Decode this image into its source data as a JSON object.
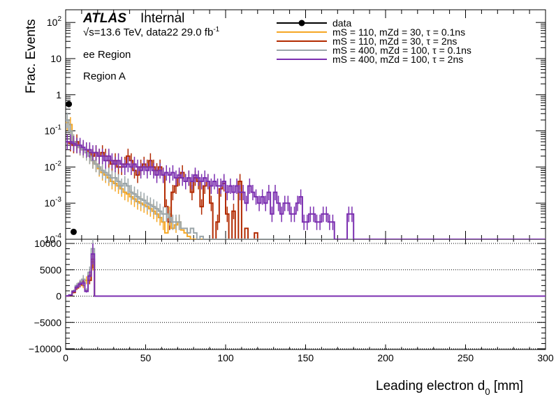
{
  "chart_data": [
    {
      "type": "line",
      "panel": "top",
      "ylabel": "Frac. Events",
      "yscale": "log",
      "ylim": [
        0.0001,
        200
      ],
      "xlim": [
        0,
        300
      ],
      "y_tick_labels": [
        "10^-4",
        "10^-3",
        "10^-2",
        "10^-1",
        "1",
        "10",
        "10^2"
      ],
      "experiment": "ATLAS",
      "experiment_status": "Internal",
      "energy_label": "√s=13.6 TeV, data22 29.0 fb^-1",
      "region_labels": [
        "ee Region",
        "Region A"
      ],
      "legend_position": "top-right",
      "series": [
        {
          "name": "data",
          "color": "#000000",
          "style": "markers",
          "x": [
            2,
            5
          ],
          "values": [
            0.55,
            0.00016
          ]
        },
        {
          "name": "mS = 110, mZd = 30, τ = 0.1ns",
          "color": "#f5a623",
          "style": "step",
          "x": [
            1,
            3,
            5,
            7,
            9,
            11,
            13,
            15,
            17,
            19,
            21,
            23,
            25,
            27,
            29,
            31,
            33,
            35,
            37,
            39,
            41,
            43,
            45,
            47,
            49,
            51,
            53,
            55,
            57,
            59,
            61,
            63,
            65,
            67,
            69,
            71,
            73,
            75,
            77,
            79
          ],
          "values": [
            0.17,
            0.15,
            0.05,
            0.04,
            0.035,
            0.03,
            0.025,
            0.02,
            0.015,
            0.012,
            0.009,
            0.007,
            0.006,
            0.005,
            0.004,
            0.0035,
            0.003,
            0.0025,
            0.002,
            0.0018,
            0.0015,
            0.0013,
            0.0011,
            0.001,
            0.0009,
            0.0008,
            0.0007,
            0.0006,
            0.0005,
            0.0004,
            0.0003,
            0.00015,
            0.0005,
            0.0002,
            0.00025,
            0.0003,
            0.00018,
            0.00015,
            0.00012,
            0.0001
          ]
        },
        {
          "name": "mS = 110, mZd = 30, τ = 2ns",
          "color": "#b22a00",
          "style": "step",
          "x": [
            1,
            3,
            5,
            7,
            9,
            11,
            13,
            15,
            17,
            19,
            21,
            23,
            25,
            27,
            29,
            31,
            33,
            35,
            37,
            39,
            41,
            43,
            45,
            47,
            49,
            51,
            53,
            55,
            57,
            59,
            61,
            63,
            65,
            67,
            69,
            71,
            73,
            75,
            77,
            79,
            81,
            83,
            85,
            87,
            89,
            91,
            93,
            95,
            97,
            99,
            101,
            103,
            105,
            107,
            109,
            111,
            113,
            115,
            117,
            119,
            121,
            123,
            125,
            127
          ],
          "values": [
            0.05,
            0.045,
            0.04,
            0.05,
            0.035,
            0.03,
            0.03,
            0.025,
            0.02,
            0.025,
            0.02,
            0.025,
            0.02,
            0.015,
            0.012,
            0.015,
            0.01,
            0.01,
            0.012,
            0.02,
            0.015,
            0.008,
            0.006,
            0.01,
            0.012,
            0.01,
            0.015,
            0.01,
            0.008,
            0.01,
            0.006,
            0.0008,
            0.0003,
            0.002,
            0.003,
            0.005,
            0.007,
            0.004,
            0.005,
            0.002,
            0.005,
            0.004,
            0.0008,
            0.003,
            0.004,
            0.001,
            0.0001,
            0.0003,
            0.0025,
            0.0035,
            0.0005,
            0.0001,
            0.0006,
            0.0001,
            0.004,
            0.0001,
            0.0002,
            0.0001,
            0.0001,
            0.00015,
            0.0001,
            0.0001,
            0.0001,
            0.0001
          ]
        },
        {
          "name": "mS = 400, mZd = 100, τ = 0.1ns",
          "color": "#9aa5a8",
          "style": "step",
          "x": [
            1,
            3,
            5,
            7,
            9,
            11,
            13,
            15,
            17,
            19,
            21,
            23,
            25,
            27,
            29,
            31,
            33,
            35,
            37,
            39,
            41,
            43,
            45,
            47,
            49,
            51,
            53,
            55,
            57,
            59,
            61,
            63,
            65,
            67,
            69,
            71,
            73,
            75,
            77,
            79,
            81,
            83,
            85,
            87,
            89,
            91,
            93,
            95,
            97,
            99,
            101,
            103,
            105,
            107,
            109,
            111
          ],
          "values": [
            0.2,
            0.1,
            0.05,
            0.04,
            0.035,
            0.03,
            0.025,
            0.02,
            0.015,
            0.012,
            0.01,
            0.008,
            0.007,
            0.006,
            0.005,
            0.005,
            0.004,
            0.003,
            0.0035,
            0.003,
            0.002,
            0.0018,
            0.0015,
            0.0013,
            0.0012,
            0.001,
            0.0009,
            0.0008,
            0.0007,
            0.0006,
            0.0005,
            0.0005,
            0.0004,
            0.0003,
            0.0003,
            0.0003,
            0.0002,
            0.0002,
            0.00015,
            0.0002,
            0.00015,
            0.0001,
            0.00012,
            0.0001,
            0.0001,
            0.0001,
            0.0001,
            0.0001,
            0.0001,
            0.0001,
            0.0001,
            0.0001,
            0.0001,
            0.0001,
            0.0001,
            0.0001
          ]
        },
        {
          "name": "mS = 400, mZd = 100, τ = 2ns",
          "color": "#7b2fb0",
          "style": "step",
          "x": [
            1,
            3,
            5,
            7,
            9,
            11,
            13,
            15,
            17,
            19,
            21,
            23,
            25,
            27,
            29,
            31,
            33,
            35,
            37,
            39,
            41,
            43,
            45,
            47,
            49,
            51,
            53,
            55,
            57,
            59,
            61,
            63,
            65,
            67,
            69,
            71,
            73,
            75,
            77,
            79,
            81,
            83,
            85,
            87,
            89,
            91,
            93,
            95,
            97,
            99,
            101,
            103,
            105,
            107,
            109,
            111,
            113,
            115,
            117,
            119,
            121,
            123,
            125,
            127,
            129,
            131,
            133,
            135,
            137,
            139,
            141,
            143,
            145,
            147,
            149,
            151,
            153,
            155,
            157,
            159,
            161,
            163,
            165,
            167,
            169,
            171,
            173,
            175,
            177,
            179,
            181
          ],
          "values": [
            0.05,
            0.05,
            0.045,
            0.04,
            0.04,
            0.035,
            0.03,
            0.03,
            0.025,
            0.025,
            0.02,
            0.02,
            0.015,
            0.02,
            0.015,
            0.012,
            0.015,
            0.012,
            0.01,
            0.012,
            0.01,
            0.012,
            0.01,
            0.008,
            0.01,
            0.008,
            0.01,
            0.008,
            0.006,
            0.008,
            0.006,
            0.007,
            0.006,
            0.007,
            0.005,
            0.006,
            0.005,
            0.004,
            0.005,
            0.004,
            0.006,
            0.005,
            0.004,
            0.005,
            0.004,
            0.003,
            0.004,
            0.003,
            0.003,
            0.004,
            0.002,
            0.003,
            0.002,
            0.003,
            0.002,
            0.002,
            0.001,
            0.003,
            0.002,
            0.0015,
            0.001,
            0.0015,
            0.001,
            0.002,
            0.0005,
            0.002,
            0.001,
            0.0005,
            0.001,
            0.001,
            0.0005,
            0.0005,
            0.001,
            0.0015,
            0.0003,
            0.0003,
            0.0005,
            0.0005,
            0.0003,
            0.0003,
            0.0005,
            0.0005,
            0.0003,
            0.0003,
            0.0001,
            0.0001,
            0.0001,
            0.0001,
            0.0005,
            0.0005,
            0.0001
          ]
        }
      ]
    },
    {
      "type": "line",
      "panel": "bottom",
      "xlabel": "Leading electron d_0 [mm]",
      "ylim": [
        -10000,
        10000
      ],
      "xlim": [
        0,
        300
      ],
      "x_ticks": [
        0,
        50,
        100,
        150,
        200,
        250,
        300
      ],
      "y_ticks": [
        -10000,
        -5000,
        0,
        5000,
        10000
      ],
      "gridlines_y": [
        -10000,
        -5000,
        0,
        5000,
        10000
      ],
      "series": [
        {
          "name": "mS = 110, mZd = 30, τ = 0.1ns",
          "color": "#f5a623",
          "x": [
            1,
            3,
            5,
            7,
            9,
            11,
            13,
            15,
            17,
            19
          ],
          "values": [
            50,
            200,
            800,
            1500,
            2500,
            2000,
            3000,
            4000,
            6500,
            0
          ]
        },
        {
          "name": "mS = 110, mZd = 30, τ = 2ns",
          "color": "#b22a00",
          "x": [
            1,
            3,
            5,
            7,
            9,
            11,
            13,
            15,
            17,
            19
          ],
          "values": [
            30,
            150,
            700,
            1600,
            2200,
            2800,
            1000,
            3000,
            7000,
            0
          ]
        },
        {
          "name": "mS = 400, mZd = 100, τ = 0.1ns",
          "color": "#9aa5a8",
          "x": [
            1,
            3,
            5,
            7,
            9,
            11,
            13,
            15,
            17,
            19
          ],
          "values": [
            60,
            250,
            1000,
            2000,
            2500,
            3200,
            1200,
            4500,
            9000,
            0
          ]
        },
        {
          "name": "mS = 400, mZd = 100, τ = 2ns",
          "color": "#7b2fb0",
          "x": [
            1,
            3,
            5,
            7,
            9,
            11,
            13,
            15,
            17,
            19
          ],
          "values": [
            40,
            200,
            900,
            1700,
            2300,
            2500,
            900,
            3800,
            8000,
            0
          ]
        }
      ]
    }
  ],
  "labels": {
    "atlas": "ATLAS",
    "internal": "Internal",
    "energy_prefix": "√s=13.6 TeV, data22 29.0 fb",
    "energy_exp": "-1",
    "region1": "ee Region",
    "region2": "Region A",
    "ylabel": "Frac. Events",
    "xlabel_main": "Leading electron d",
    "xlabel_sub": "0",
    "xlabel_unit": " [mm]"
  }
}
